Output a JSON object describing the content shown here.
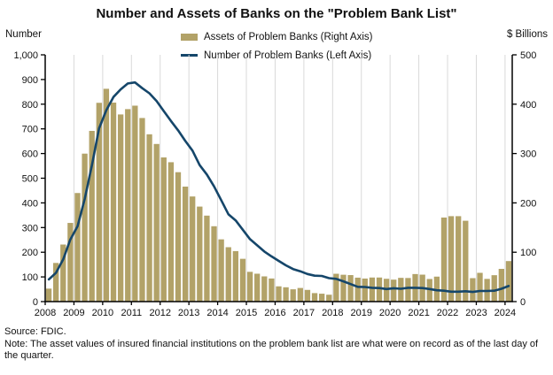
{
  "title": "Number and Assets of Banks on the \"Problem Bank List\"",
  "source": "Source: FDIC.",
  "note": "Note: The asset values of insured financial institutions on the problem bank list are what were on record as of the last day of the quarter.",
  "colors": {
    "bar": "#b2a268",
    "line": "#15466a",
    "grid": "#d9d9d9",
    "axis": "#000000",
    "text": "#111111"
  },
  "chart_data": {
    "type": "combo-bar-line",
    "x_period": "quarterly",
    "x_start": "2008 Q1",
    "x_end": "2024 Q1",
    "grid": "vertical-yearly",
    "legend_position": "top-center",
    "year_labels": [
      "2008",
      "2009",
      "2010",
      "2011",
      "2012",
      "2013",
      "2014",
      "2015",
      "2016",
      "2017",
      "2018",
      "2019",
      "2020",
      "2021",
      "2022",
      "2023",
      "2024"
    ],
    "left_axis": {
      "title": "Number",
      "min": 0,
      "max": 1000,
      "step": 100
    },
    "right_axis": {
      "title": "$ Billions",
      "min": 0,
      "max": 500,
      "step": 100
    },
    "series": [
      {
        "name": "Assets of Problem Banks (Right Axis)",
        "type": "bar",
        "axis": "right",
        "color": "#b2a268",
        "values": [
          26.3,
          78.3,
          115.6,
          159.4,
          220.0,
          299.8,
          345.9,
          402.8,
          431.2,
          403.2,
          379.2,
          390.0,
          397.0,
          372.0,
          339.0,
          319.4,
          292.1,
          282.4,
          262.2,
          233.0,
          213.0,
          192.5,
          174.2,
          152.7,
          126.1,
          110.2,
          102.3,
          86.7,
          60.3,
          56.5,
          51.1,
          46.8,
          30.9,
          29.0,
          24.9,
          27.6,
          23.7,
          17.2,
          16.0,
          13.9,
          56.4,
          54.4,
          53.7,
          48.5,
          46.7,
          48.8,
          48.8,
          46.2,
          44.5,
          48.1,
          47.8,
          55.8,
          54.6,
          45.8,
          50.6,
          170.3,
          173.1,
          173.1,
          163.8,
          47.5,
          58.3,
          46.0,
          53.5,
          66.3,
          82.1
        ]
      },
      {
        "name": "Number of Problem Banks (Left Axis)",
        "type": "line",
        "axis": "left",
        "color": "#15466a",
        "values": [
          90,
          117,
          171,
          252,
          305,
          416,
          552,
          702,
          775,
          829,
          860,
          884,
          888,
          865,
          844,
          813,
          772,
          732,
          694,
          651,
          612,
          553,
          515,
          467,
          411,
          354,
          329,
          291,
          253,
          228,
          203,
          183,
          165,
          147,
          132,
          123,
          112,
          105,
          104,
          95,
          92,
          82,
          71,
          60,
          59,
          56,
          55,
          51,
          54,
          52,
          56,
          56,
          55,
          51,
          46,
          44,
          40,
          40,
          42,
          39,
          43,
          43,
          44,
          52,
          63
        ]
      }
    ]
  }
}
